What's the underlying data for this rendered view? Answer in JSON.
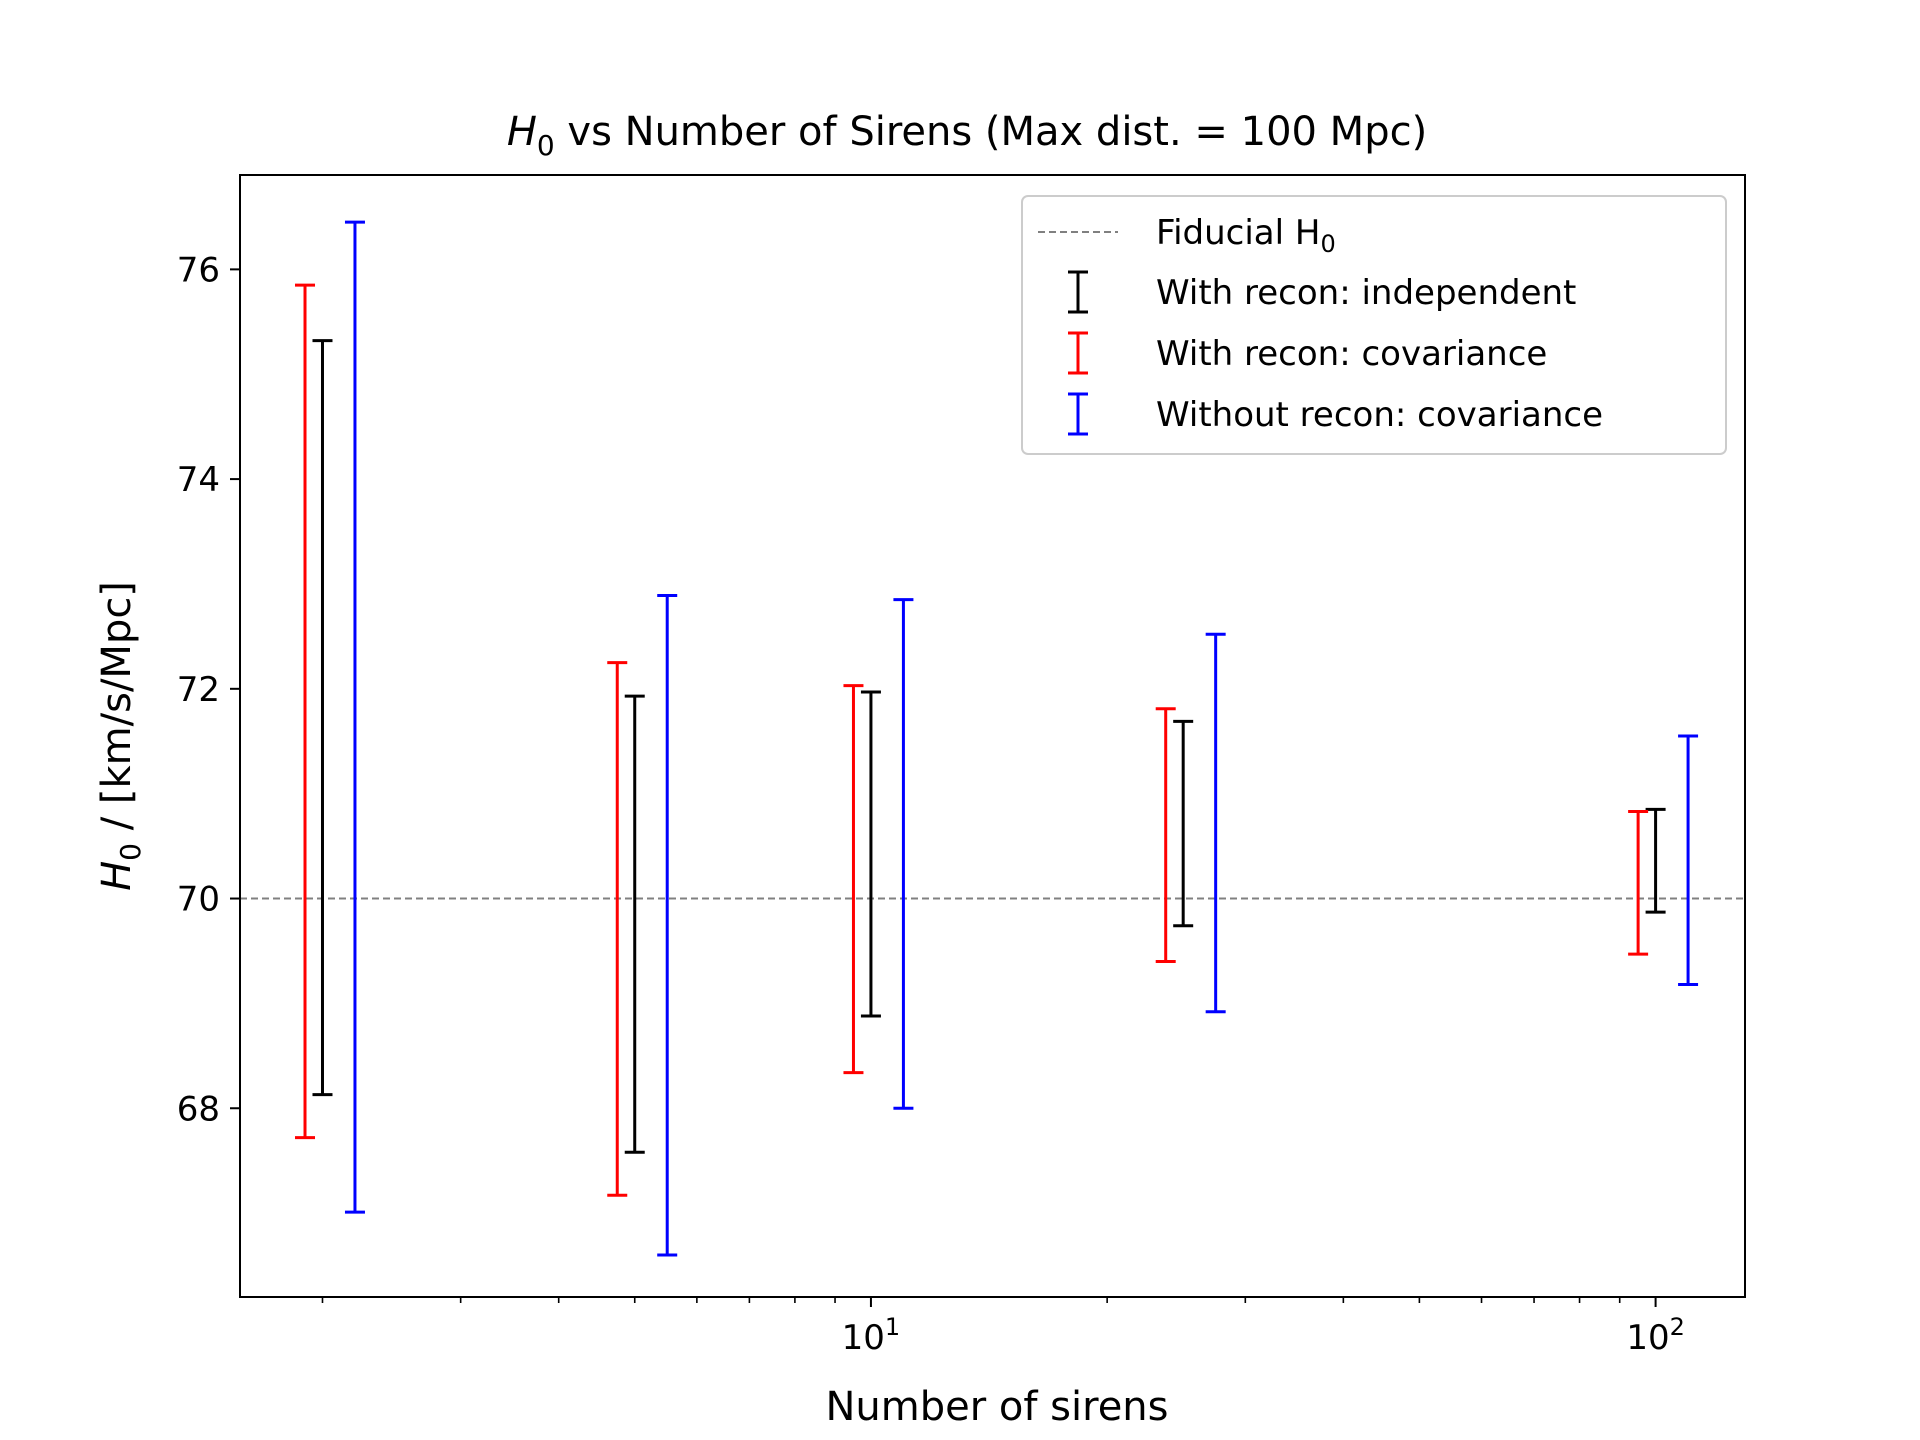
{
  "chart_data": {
    "type": "errorbar",
    "title_main": "H",
    "title_sub": "0",
    "title_rest": " vs Number of Sirens (Max dist. = 100 Mpc)",
    "xlabel": "Number of sirens",
    "ylabel_main": "H",
    "ylabel_sub": "0",
    "ylabel_rest": " / [km/s/Mpc]",
    "xscale": "log",
    "xlim": [
      1.57,
      130
    ],
    "ylim": [
      66.2,
      76.9
    ],
    "yticks": [
      68,
      70,
      72,
      74,
      76
    ],
    "xticks_major": [
      {
        "value": 10,
        "base": "10",
        "exp": "1"
      },
      {
        "value": 100,
        "base": "10",
        "exp": "2"
      }
    ],
    "xticks_minor": [
      2,
      3,
      4,
      5,
      6,
      7,
      8,
      9,
      20,
      30,
      40,
      50,
      60,
      70,
      80,
      90
    ],
    "fiducial": {
      "value": 70,
      "color": "#808080",
      "label_main": "Fiducial H",
      "label_sub": "0"
    },
    "legend_position": "top-right",
    "series": [
      {
        "name": "With recon: independent",
        "color": "#000000",
        "points": [
          {
            "x": 2,
            "low": 68.13,
            "high": 75.32
          },
          {
            "x": 5,
            "low": 67.58,
            "high": 71.93
          },
          {
            "x": 10,
            "low": 68.88,
            "high": 71.97
          },
          {
            "x": 25,
            "low": 69.74,
            "high": 71.69
          },
          {
            "x": 100,
            "low": 69.87,
            "high": 70.85
          }
        ]
      },
      {
        "name": "With recon: covariance",
        "color": "#ff0000",
        "points": [
          {
            "x": 1.9,
            "low": 67.72,
            "high": 75.85
          },
          {
            "x": 4.75,
            "low": 67.17,
            "high": 72.25
          },
          {
            "x": 9.5,
            "low": 68.34,
            "high": 72.03
          },
          {
            "x": 23.75,
            "low": 69.4,
            "high": 71.81
          },
          {
            "x": 95,
            "low": 69.47,
            "high": 70.83
          }
        ]
      },
      {
        "name": "Without recon: covariance",
        "color": "#0000ff",
        "points": [
          {
            "x": 2.2,
            "low": 67.01,
            "high": 76.45
          },
          {
            "x": 5.5,
            "low": 66.6,
            "high": 72.89
          },
          {
            "x": 11,
            "low": 68.0,
            "high": 72.85
          },
          {
            "x": 27.5,
            "low": 68.92,
            "high": 72.52
          },
          {
            "x": 110,
            "low": 69.18,
            "high": 71.55
          }
        ]
      }
    ]
  }
}
